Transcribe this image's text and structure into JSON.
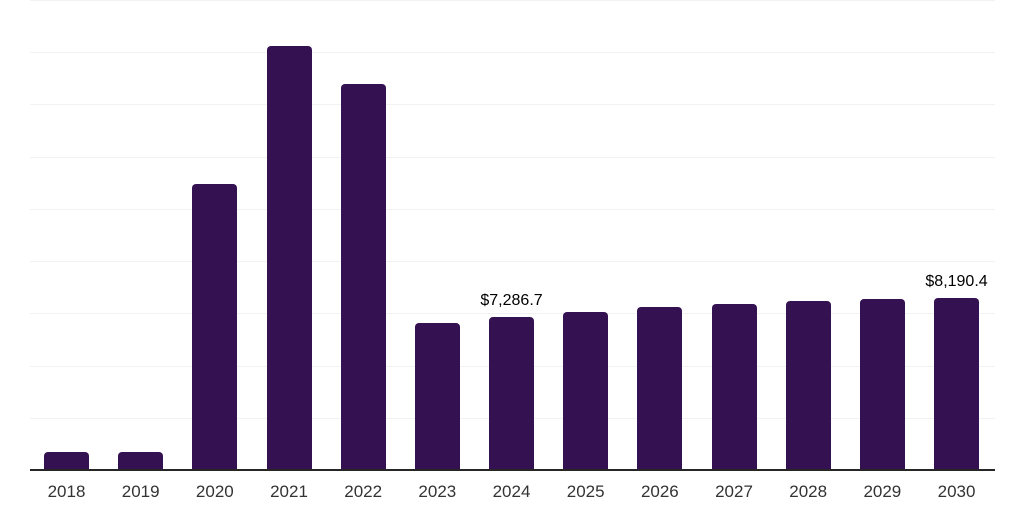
{
  "chart_data": {
    "type": "bar",
    "title": "",
    "xlabel": "",
    "ylabel": "",
    "categories": [
      "2018",
      "2019",
      "2020",
      "2021",
      "2022",
      "2023",
      "2024",
      "2025",
      "2026",
      "2027",
      "2028",
      "2029",
      "2030"
    ],
    "values": [
      810,
      810,
      13640,
      20270,
      18450,
      7010,
      7286.7,
      7500,
      7740,
      7890,
      8030,
      8140,
      8190.4
    ],
    "value_labels": [
      {
        "category": "2024",
        "text": "$7,286.7"
      },
      {
        "category": "2030",
        "text": "$8,190.4"
      }
    ],
    "ylim": [
      0,
      22500
    ],
    "gridline_step": 2500,
    "grid": "horizontal-only",
    "legend": "none",
    "y_axis_tick_labels": "none"
  },
  "style": {
    "bar_color": "#341150",
    "axis_line_color": "#262626",
    "grid_color": "#f2f2f2",
    "tick_label_color": "#333333",
    "value_label_color": "#000000",
    "background_color": "#ffffff"
  }
}
